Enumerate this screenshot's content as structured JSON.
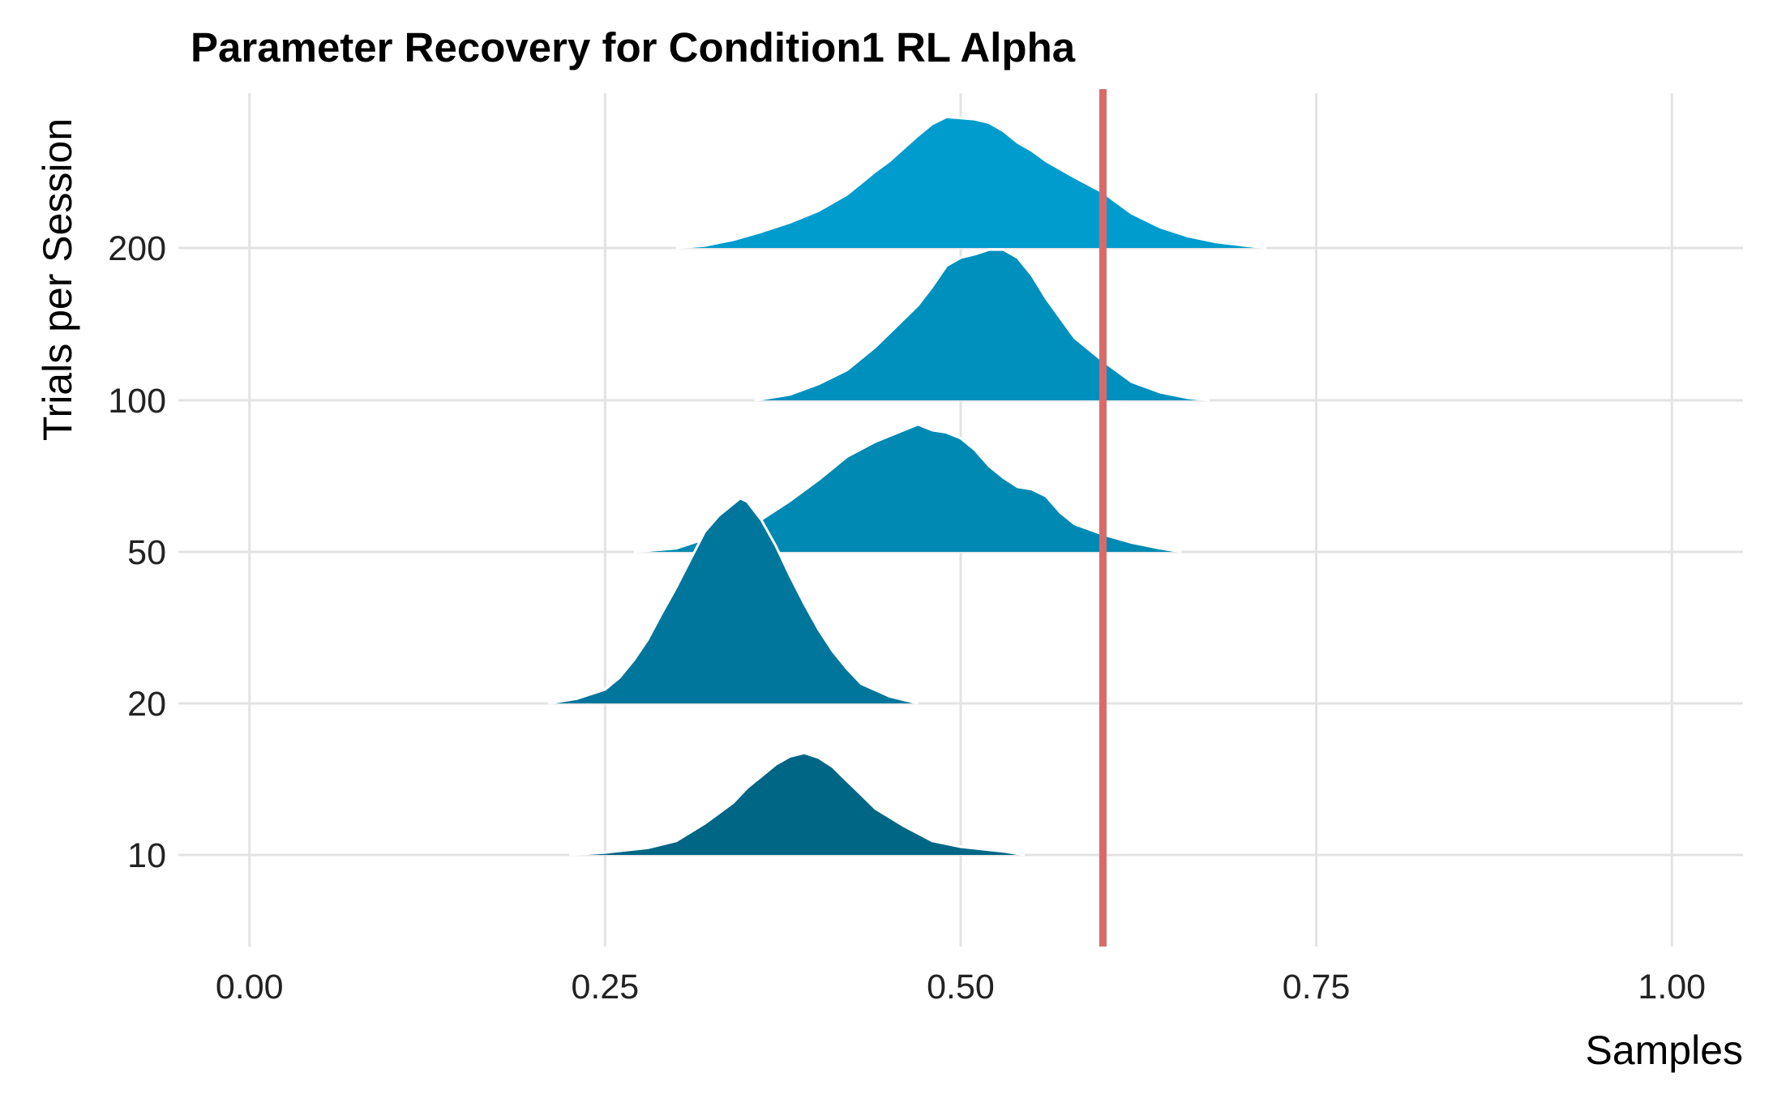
{
  "chart_data": {
    "type": "ridgeline",
    "title": "Parameter Recovery for Condition1 RL Alpha",
    "xlabel": "Samples",
    "ylabel": "Trials per Session",
    "xlim": [
      -0.05,
      1.05
    ],
    "x_ticks": [
      "0.00",
      "0.25",
      "0.50",
      "0.75",
      "1.00"
    ],
    "x_tick_values": [
      0,
      0.25,
      0.5,
      0.75,
      1.0
    ],
    "categories": [
      "10",
      "20",
      "50",
      "100",
      "200"
    ],
    "grid": true,
    "legend": "none",
    "reference_line": {
      "x": 0.6,
      "color": "#d96a6a"
    },
    "series": [
      {
        "category": "10",
        "color": "#006685",
        "density": [
          [
            0.225,
            0.0
          ],
          [
            0.25,
            0.02
          ],
          [
            0.28,
            0.06
          ],
          [
            0.3,
            0.12
          ],
          [
            0.32,
            0.27
          ],
          [
            0.34,
            0.45
          ],
          [
            0.35,
            0.58
          ],
          [
            0.36,
            0.68
          ],
          [
            0.37,
            0.78
          ],
          [
            0.38,
            0.85
          ],
          [
            0.39,
            0.88
          ],
          [
            0.4,
            0.84
          ],
          [
            0.41,
            0.76
          ],
          [
            0.42,
            0.64
          ],
          [
            0.43,
            0.52
          ],
          [
            0.44,
            0.4
          ],
          [
            0.46,
            0.25
          ],
          [
            0.48,
            0.12
          ],
          [
            0.5,
            0.07
          ],
          [
            0.53,
            0.03
          ],
          [
            0.545,
            0.0
          ]
        ]
      },
      {
        "category": "20",
        "color": "#00769C",
        "density": [
          [
            0.21,
            0.0
          ],
          [
            0.23,
            0.04
          ],
          [
            0.25,
            0.12
          ],
          [
            0.26,
            0.22
          ],
          [
            0.27,
            0.37
          ],
          [
            0.28,
            0.55
          ],
          [
            0.29,
            0.78
          ],
          [
            0.3,
            1.0
          ],
          [
            0.31,
            1.24
          ],
          [
            0.32,
            1.48
          ],
          [
            0.33,
            1.62
          ],
          [
            0.34,
            1.72
          ],
          [
            0.345,
            1.77
          ],
          [
            0.35,
            1.74
          ],
          [
            0.36,
            1.58
          ],
          [
            0.37,
            1.36
          ],
          [
            0.38,
            1.1
          ],
          [
            0.39,
            0.86
          ],
          [
            0.4,
            0.64
          ],
          [
            0.41,
            0.45
          ],
          [
            0.42,
            0.3
          ],
          [
            0.43,
            0.17
          ],
          [
            0.45,
            0.06
          ],
          [
            0.47,
            0.0
          ]
        ]
      },
      {
        "category": "50",
        "color": "#0089B3",
        "density": [
          [
            0.27,
            0.0
          ],
          [
            0.3,
            0.03
          ],
          [
            0.33,
            0.15
          ],
          [
            0.36,
            0.28
          ],
          [
            0.38,
            0.44
          ],
          [
            0.4,
            0.62
          ],
          [
            0.42,
            0.82
          ],
          [
            0.44,
            0.95
          ],
          [
            0.46,
            1.05
          ],
          [
            0.47,
            1.1
          ],
          [
            0.48,
            1.05
          ],
          [
            0.49,
            1.03
          ],
          [
            0.5,
            0.98
          ],
          [
            0.51,
            0.88
          ],
          [
            0.52,
            0.74
          ],
          [
            0.53,
            0.64
          ],
          [
            0.54,
            0.56
          ],
          [
            0.55,
            0.54
          ],
          [
            0.56,
            0.48
          ],
          [
            0.57,
            0.34
          ],
          [
            0.58,
            0.24
          ],
          [
            0.6,
            0.15
          ],
          [
            0.62,
            0.08
          ],
          [
            0.64,
            0.03
          ],
          [
            0.655,
            0.0
          ]
        ]
      },
      {
        "category": "100",
        "color": "#0090BE",
        "density": [
          [
            0.355,
            0.0
          ],
          [
            0.38,
            0.05
          ],
          [
            0.4,
            0.14
          ],
          [
            0.42,
            0.26
          ],
          [
            0.44,
            0.46
          ],
          [
            0.46,
            0.7
          ],
          [
            0.47,
            0.82
          ],
          [
            0.48,
            0.98
          ],
          [
            0.49,
            1.16
          ],
          [
            0.5,
            1.23
          ],
          [
            0.51,
            1.26
          ],
          [
            0.52,
            1.3
          ],
          [
            0.53,
            1.3
          ],
          [
            0.54,
            1.23
          ],
          [
            0.55,
            1.08
          ],
          [
            0.56,
            0.88
          ],
          [
            0.57,
            0.71
          ],
          [
            0.58,
            0.54
          ],
          [
            0.6,
            0.34
          ],
          [
            0.62,
            0.16
          ],
          [
            0.64,
            0.07
          ],
          [
            0.66,
            0.02
          ],
          [
            0.675,
            0.0
          ]
        ]
      },
      {
        "category": "200",
        "color": "#009CCE",
        "density": [
          [
            0.3,
            0.0
          ],
          [
            0.32,
            0.02
          ],
          [
            0.34,
            0.07
          ],
          [
            0.36,
            0.14
          ],
          [
            0.38,
            0.22
          ],
          [
            0.4,
            0.32
          ],
          [
            0.42,
            0.46
          ],
          [
            0.43,
            0.56
          ],
          [
            0.44,
            0.66
          ],
          [
            0.45,
            0.75
          ],
          [
            0.46,
            0.86
          ],
          [
            0.47,
            0.97
          ],
          [
            0.48,
            1.07
          ],
          [
            0.49,
            1.13
          ],
          [
            0.5,
            1.12
          ],
          [
            0.51,
            1.11
          ],
          [
            0.52,
            1.08
          ],
          [
            0.53,
            1.01
          ],
          [
            0.54,
            0.91
          ],
          [
            0.55,
            0.84
          ],
          [
            0.56,
            0.75
          ],
          [
            0.58,
            0.61
          ],
          [
            0.6,
            0.48
          ],
          [
            0.62,
            0.3
          ],
          [
            0.64,
            0.18
          ],
          [
            0.66,
            0.1
          ],
          [
            0.68,
            0.05
          ],
          [
            0.7,
            0.02
          ],
          [
            0.715,
            0.0
          ]
        ]
      }
    ]
  }
}
